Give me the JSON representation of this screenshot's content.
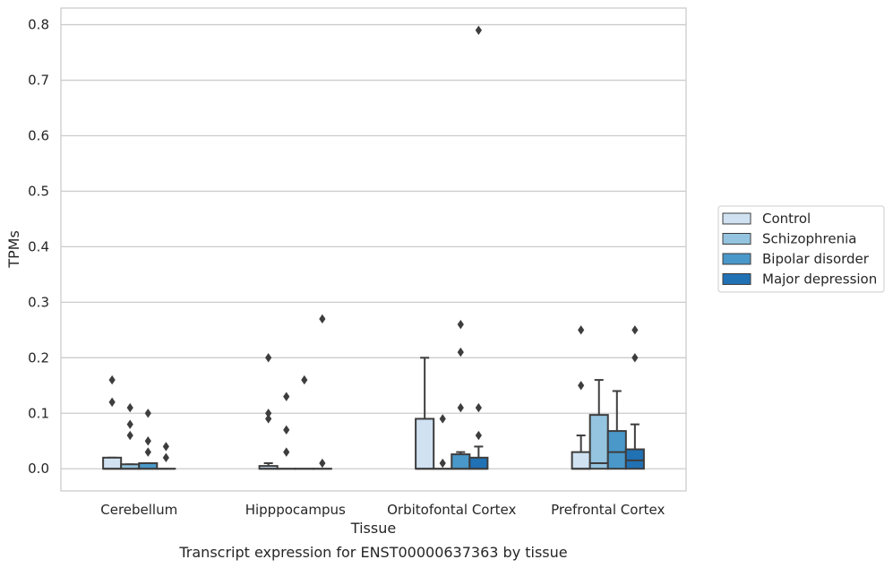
{
  "caption": "Transcript expression for ENST00000637363 by tissue",
  "chart_data": {
    "type": "box",
    "xlabel": "Tissue",
    "ylabel": "TPMs",
    "ylim": [
      -0.04,
      0.83
    ],
    "yticks": [
      0.0,
      0.1,
      0.2,
      0.3,
      0.4,
      0.5,
      0.6,
      0.7,
      0.8
    ],
    "ytick_labels": [
      "0.0",
      "0.1",
      "0.2",
      "0.3",
      "0.4",
      "0.5",
      "0.6",
      "0.7",
      "0.8"
    ],
    "grid": "horizontal",
    "legend_position": "right",
    "categories": [
      "Cerebellum",
      "Hipppocampus",
      "Orbitofontal Cortex",
      "Prefrontal Cortex"
    ],
    "series": [
      {
        "name": "Control",
        "color": "#d0e1f2",
        "boxes": [
          {
            "q1": 0.0,
            "median": 0.0,
            "q3": 0.02,
            "whisker_low": 0.0,
            "whisker_high": 0.02,
            "outliers": [
              0.16,
              0.12
            ]
          },
          {
            "q1": 0.0,
            "median": 0.0,
            "q3": 0.005,
            "whisker_low": 0.0,
            "whisker_high": 0.01,
            "outliers": [
              0.2,
              0.1,
              0.09
            ]
          },
          {
            "q1": 0.0,
            "median": 0.0,
            "q3": 0.09,
            "whisker_low": 0.0,
            "whisker_high": 0.2,
            "outliers": []
          },
          {
            "q1": 0.0,
            "median": 0.0,
            "q3": 0.03,
            "whisker_low": 0.0,
            "whisker_high": 0.06,
            "outliers": [
              0.25,
              0.15
            ]
          }
        ]
      },
      {
        "name": "Schizophrenia",
        "color": "#94c4df",
        "boxes": [
          {
            "q1": 0.0,
            "median": 0.0,
            "q3": 0.008,
            "whisker_low": 0.0,
            "whisker_high": 0.008,
            "outliers": [
              0.11,
              0.08,
              0.06
            ]
          },
          {
            "q1": 0.0,
            "median": 0.0,
            "q3": 0.0,
            "whisker_low": 0.0,
            "whisker_high": 0.0,
            "outliers": [
              0.13,
              0.07,
              0.03
            ]
          },
          {
            "q1": 0.0,
            "median": 0.0,
            "q3": 0.0,
            "whisker_low": 0.0,
            "whisker_high": 0.0,
            "outliers": [
              0.09,
              0.01
            ]
          },
          {
            "q1": 0.0,
            "median": 0.01,
            "q3": 0.097,
            "whisker_low": 0.0,
            "whisker_high": 0.16,
            "outliers": []
          }
        ]
      },
      {
        "name": "Bipolar disorder",
        "color": "#4a98c9",
        "boxes": [
          {
            "q1": 0.0,
            "median": 0.0,
            "q3": 0.01,
            "whisker_low": 0.0,
            "whisker_high": 0.01,
            "outliers": [
              0.1,
              0.05,
              0.03
            ]
          },
          {
            "q1": 0.0,
            "median": 0.0,
            "q3": 0.0,
            "whisker_low": 0.0,
            "whisker_high": 0.0,
            "outliers": [
              0.16
            ]
          },
          {
            "q1": 0.0,
            "median": 0.0,
            "q3": 0.026,
            "whisker_low": 0.0,
            "whisker_high": 0.03,
            "outliers": [
              0.26,
              0.21,
              0.11
            ]
          },
          {
            "q1": 0.0,
            "median": 0.03,
            "q3": 0.068,
            "whisker_low": 0.0,
            "whisker_high": 0.14,
            "outliers": []
          }
        ]
      },
      {
        "name": "Major depression",
        "color": "#2171b5",
        "boxes": [
          {
            "q1": 0.0,
            "median": 0.0,
            "q3": 0.0,
            "whisker_low": 0.0,
            "whisker_high": 0.0,
            "outliers": [
              0.04,
              0.02
            ]
          },
          {
            "q1": 0.0,
            "median": 0.0,
            "q3": 0.0,
            "whisker_low": 0.0,
            "whisker_high": 0.0,
            "outliers": [
              0.27,
              0.01
            ]
          },
          {
            "q1": 0.0,
            "median": 0.0,
            "q3": 0.02,
            "whisker_low": 0.0,
            "whisker_high": 0.04,
            "outliers": [
              0.79,
              0.11,
              0.06
            ]
          },
          {
            "q1": 0.0,
            "median": 0.015,
            "q3": 0.035,
            "whisker_low": 0.0,
            "whisker_high": 0.08,
            "outliers": [
              0.25,
              0.2
            ]
          }
        ]
      }
    ]
  }
}
